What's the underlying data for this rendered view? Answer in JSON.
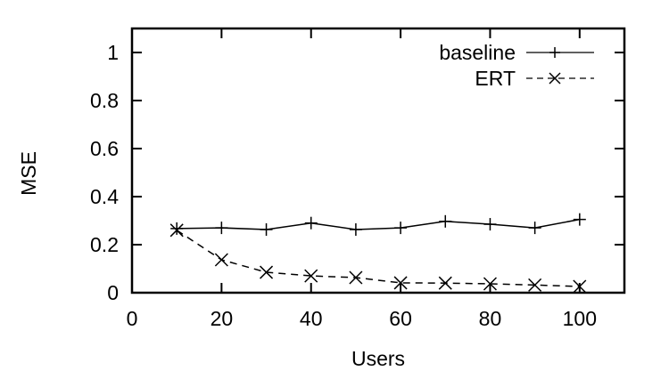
{
  "chart_data": {
    "type": "line",
    "title": "",
    "xlabel": "Users",
    "ylabel": "MSE",
    "xlim": [
      0,
      110
    ],
    "ylim": [
      0,
      1.1
    ],
    "xticks": [
      0,
      20,
      40,
      60,
      80,
      100
    ],
    "yticks": [
      0,
      0.2,
      0.4,
      0.6,
      0.8,
      1
    ],
    "xtick_labels": [
      "0",
      "20",
      "40",
      "60",
      "80",
      "100"
    ],
    "ytick_labels": [
      "0",
      "0.2",
      "0.4",
      "0.6",
      "0.8",
      "1"
    ],
    "grid": false,
    "legend_position": "top-right",
    "x": [
      10,
      20,
      30,
      40,
      50,
      60,
      70,
      80,
      90,
      100
    ],
    "series": [
      {
        "name": "baseline",
        "style": "solid",
        "marker": "plus",
        "values": [
          0.267,
          0.27,
          0.263,
          0.29,
          0.263,
          0.27,
          0.297,
          0.285,
          0.27,
          0.305
        ]
      },
      {
        "name": "ERT",
        "style": "dashed",
        "marker": "cross",
        "values": [
          0.26,
          0.137,
          0.085,
          0.07,
          0.063,
          0.041,
          0.04,
          0.037,
          0.032,
          0.026
        ]
      }
    ]
  },
  "colors": {
    "background": "#ffffff",
    "axis": "#000000",
    "series": "#000000"
  }
}
